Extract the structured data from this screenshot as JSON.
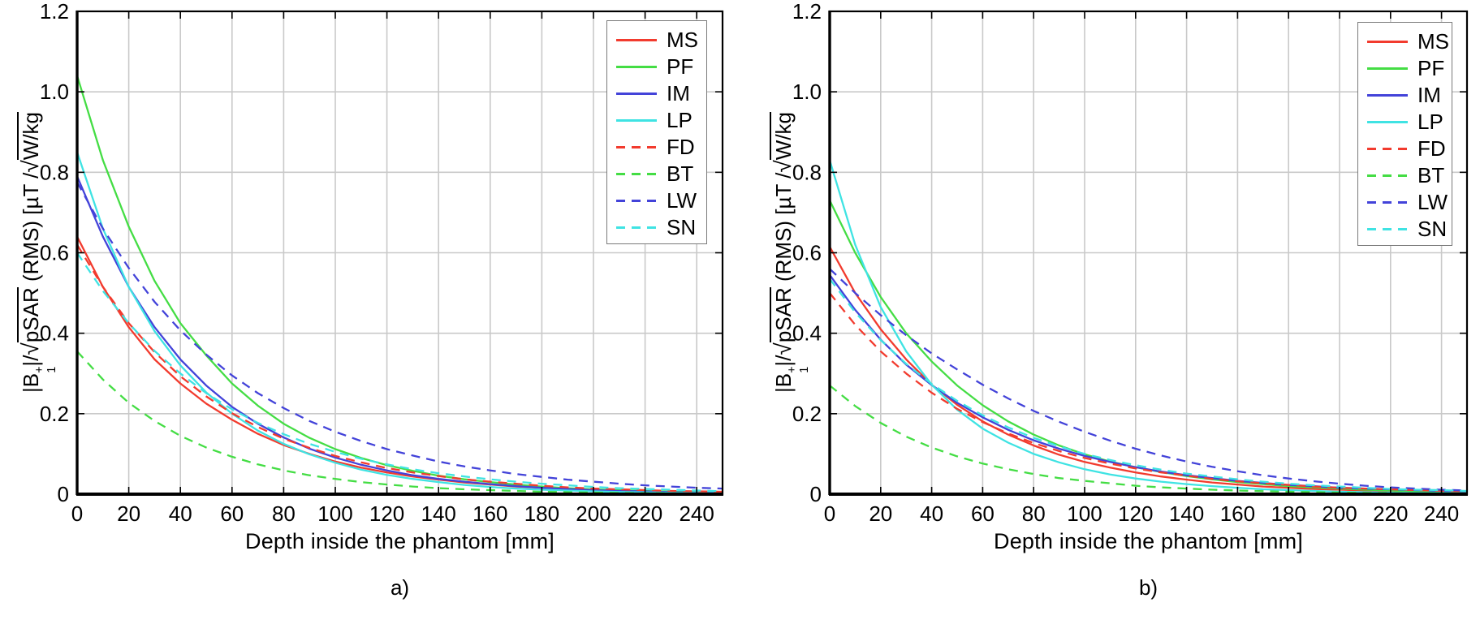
{
  "figure": {
    "captions": {
      "a": "a)",
      "b": "b)"
    },
    "xlabel": "Depth inside the phantom [mm]",
    "ylabel_parts": {
      "p1": "|B",
      "sup": "+",
      "sub": "1",
      "p2": "|/",
      "s1": "√",
      "r1": "pSAR",
      "p3": " (RMS)  [µT /",
      "s2": "√",
      "r2": "W/kg"
    },
    "colors": {
      "red": "#f23b2e",
      "green": "#44dd44",
      "blue": "#4343d9",
      "cyan": "#3fe3e3",
      "grid": "#c9c9c9",
      "axis": "#000000",
      "legend_border": "#7a7a7a"
    }
  },
  "chart_data": [
    {
      "type": "line",
      "panel": "a",
      "title": "",
      "xlabel": "Depth inside the phantom [mm]",
      "ylabel": "|B1+|/sqrt(pSAR) (RMS) [uT/sqrt(W/kg)]",
      "xlim": [
        0,
        250
      ],
      "ylim": [
        0,
        1.2
      ],
      "grid": true,
      "legend_position": "top-right",
      "xticks": [
        0,
        20,
        40,
        60,
        80,
        100,
        120,
        140,
        160,
        180,
        200,
        220,
        240
      ],
      "xtick_labels": [
        "0",
        "20",
        "40",
        "60",
        "80",
        "100",
        "120",
        "140",
        "160",
        "180",
        "200",
        "220",
        "240"
      ],
      "yticks": [
        0,
        0.2,
        0.4,
        0.6,
        0.8,
        1.0,
        1.2
      ],
      "ytick_labels": [
        "0",
        "0.2",
        "0.4",
        "0.6",
        "0.8",
        "1.0",
        "1.2"
      ],
      "x": [
        0,
        10,
        20,
        30,
        40,
        50,
        60,
        70,
        80,
        90,
        100,
        110,
        120,
        130,
        140,
        150,
        160,
        170,
        180,
        190,
        200,
        210,
        220,
        230,
        240,
        250
      ],
      "series": [
        {
          "name": "MS",
          "color": "#f23b2e",
          "dash": false,
          "values": [
            0.64,
            0.515,
            0.415,
            0.335,
            0.275,
            0.225,
            0.185,
            0.15,
            0.122,
            0.1,
            0.081,
            0.066,
            0.054,
            0.044,
            0.036,
            0.029,
            0.024,
            0.019,
            0.016,
            0.013,
            0.01,
            0.008,
            0.007,
            0.006,
            0.005,
            0.004
          ]
        },
        {
          "name": "PF",
          "color": "#44dd44",
          "dash": false,
          "values": [
            1.04,
            0.83,
            0.665,
            0.53,
            0.425,
            0.345,
            0.275,
            0.22,
            0.175,
            0.14,
            0.112,
            0.09,
            0.072,
            0.058,
            0.046,
            0.037,
            0.03,
            0.024,
            0.019,
            0.015,
            0.012,
            0.01,
            0.008,
            0.006,
            0.005,
            0.004
          ]
        },
        {
          "name": "IM",
          "color": "#4343d9",
          "dash": false,
          "values": [
            0.79,
            0.64,
            0.515,
            0.415,
            0.335,
            0.27,
            0.217,
            0.175,
            0.141,
            0.113,
            0.091,
            0.073,
            0.059,
            0.047,
            0.038,
            0.031,
            0.025,
            0.02,
            0.016,
            0.013,
            0.01,
            0.008,
            0.007,
            0.005,
            0.004,
            0.0035
          ]
        },
        {
          "name": "LP",
          "color": "#3fe3e3",
          "dash": false,
          "values": [
            0.85,
            0.66,
            0.515,
            0.405,
            0.32,
            0.253,
            0.2,
            0.158,
            0.125,
            0.099,
            0.078,
            0.061,
            0.048,
            0.038,
            0.03,
            0.023,
            0.018,
            0.014,
            0.011,
            0.009,
            0.007,
            0.0055,
            0.0045,
            0.0035,
            0.003,
            0.0025
          ]
        },
        {
          "name": "FD",
          "color": "#f23b2e",
          "dash": true,
          "values": [
            0.62,
            0.515,
            0.425,
            0.353,
            0.293,
            0.243,
            0.201,
            0.167,
            0.138,
            0.115,
            0.095,
            0.079,
            0.065,
            0.054,
            0.045,
            0.037,
            0.031,
            0.026,
            0.021,
            0.017,
            0.014,
            0.012,
            0.01,
            0.008,
            0.007,
            0.006
          ]
        },
        {
          "name": "BT",
          "color": "#44dd44",
          "dash": true,
          "values": [
            0.355,
            0.285,
            0.227,
            0.182,
            0.145,
            0.116,
            0.093,
            0.074,
            0.059,
            0.047,
            0.038,
            0.03,
            0.024,
            0.019,
            0.015,
            0.012,
            0.01,
            0.008,
            0.006,
            0.005,
            0.004,
            0.003,
            0.0026,
            0.0021,
            0.0017,
            0.0014
          ]
        },
        {
          "name": "LW",
          "color": "#4343d9",
          "dash": true,
          "values": [
            0.775,
            0.66,
            0.562,
            0.478,
            0.407,
            0.347,
            0.295,
            0.251,
            0.214,
            0.182,
            0.155,
            0.132,
            0.112,
            0.096,
            0.081,
            0.069,
            0.059,
            0.05,
            0.043,
            0.036,
            0.031,
            0.026,
            0.022,
            0.019,
            0.016,
            0.014
          ]
        },
        {
          "name": "SN",
          "color": "#3fe3e3",
          "dash": true,
          "values": [
            0.6,
            0.505,
            0.425,
            0.356,
            0.3,
            0.251,
            0.211,
            0.177,
            0.149,
            0.125,
            0.105,
            0.088,
            0.074,
            0.062,
            0.052,
            0.044,
            0.037,
            0.031,
            0.026,
            0.022,
            0.018,
            0.015,
            0.013,
            0.011,
            0.009,
            0.0075
          ]
        }
      ]
    },
    {
      "type": "line",
      "panel": "b",
      "title": "",
      "xlabel": "Depth inside the phantom [mm]",
      "ylabel": "|B1+|/sqrt(pSAR) (RMS) [uT/sqrt(W/kg)]",
      "xlim": [
        0,
        250
      ],
      "ylim": [
        0,
        1.2
      ],
      "grid": true,
      "legend_position": "top-right",
      "xticks": [
        0,
        20,
        40,
        60,
        80,
        100,
        120,
        140,
        160,
        180,
        200,
        220,
        240
      ],
      "xtick_labels": [
        "0",
        "20",
        "40",
        "60",
        "80",
        "100",
        "120",
        "140",
        "160",
        "180",
        "200",
        "220",
        "240"
      ],
      "yticks": [
        0,
        0.2,
        0.4,
        0.6,
        0.8,
        1.0,
        1.2
      ],
      "ytick_labels": [
        "0",
        "0.2",
        "0.4",
        "0.6",
        "0.8",
        "1.0",
        "1.2"
      ],
      "x": [
        0,
        10,
        20,
        30,
        40,
        50,
        60,
        70,
        80,
        90,
        100,
        110,
        120,
        130,
        140,
        150,
        160,
        170,
        180,
        190,
        200,
        210,
        220,
        230,
        240,
        250
      ],
      "series": [
        {
          "name": "MS",
          "color": "#f23b2e",
          "dash": false,
          "values": [
            0.615,
            0.5,
            0.41,
            0.335,
            0.272,
            0.222,
            0.181,
            0.148,
            0.121,
            0.098,
            0.08,
            0.066,
            0.054,
            0.044,
            0.036,
            0.029,
            0.024,
            0.019,
            0.016,
            0.013,
            0.011,
            0.009,
            0.007,
            0.006,
            0.005,
            0.004
          ]
        },
        {
          "name": "PF",
          "color": "#44dd44",
          "dash": false,
          "values": [
            0.73,
            0.6,
            0.49,
            0.4,
            0.33,
            0.27,
            0.221,
            0.181,
            0.148,
            0.121,
            0.099,
            0.081,
            0.067,
            0.055,
            0.045,
            0.037,
            0.03,
            0.025,
            0.02,
            0.017,
            0.014,
            0.011,
            0.009,
            0.007,
            0.006,
            0.005
          ]
        },
        {
          "name": "IM",
          "color": "#4343d9",
          "dash": false,
          "values": [
            0.545,
            0.458,
            0.384,
            0.322,
            0.271,
            0.227,
            0.191,
            0.16,
            0.134,
            0.113,
            0.095,
            0.08,
            0.067,
            0.056,
            0.047,
            0.04,
            0.033,
            0.028,
            0.023,
            0.02,
            0.016,
            0.014,
            0.012,
            0.01,
            0.008,
            0.007
          ]
        },
        {
          "name": "LP",
          "color": "#3fe3e3",
          "dash": false,
          "values": [
            0.83,
            0.62,
            0.465,
            0.355,
            0.272,
            0.21,
            0.163,
            0.128,
            0.1,
            0.079,
            0.062,
            0.049,
            0.039,
            0.031,
            0.025,
            0.02,
            0.016,
            0.012,
            0.01,
            0.008,
            0.006,
            0.005,
            0.004,
            0.003,
            0.0026,
            0.0021
          ]
        },
        {
          "name": "FD",
          "color": "#f23b2e",
          "dash": true,
          "values": [
            0.5,
            0.421,
            0.355,
            0.3,
            0.252,
            0.212,
            0.179,
            0.151,
            0.127,
            0.107,
            0.09,
            0.076,
            0.064,
            0.054,
            0.046,
            0.038,
            0.032,
            0.027,
            0.023,
            0.019,
            0.016,
            0.014,
            0.012,
            0.01,
            0.008,
            0.007
          ]
        },
        {
          "name": "BT",
          "color": "#44dd44",
          "dash": true,
          "values": [
            0.27,
            0.219,
            0.177,
            0.143,
            0.116,
            0.094,
            0.076,
            0.062,
            0.05,
            0.04,
            0.033,
            0.027,
            0.021,
            0.017,
            0.014,
            0.011,
            0.009,
            0.0075,
            0.006,
            0.005,
            0.004,
            0.0032,
            0.0026,
            0.0021,
            0.0017,
            0.0014
          ]
        },
        {
          "name": "LW",
          "color": "#4343d9",
          "dash": true,
          "values": [
            0.56,
            0.5,
            0.445,
            0.395,
            0.35,
            0.31,
            0.272,
            0.238,
            0.207,
            0.18,
            0.155,
            0.133,
            0.113,
            0.096,
            0.081,
            0.068,
            0.057,
            0.047,
            0.039,
            0.032,
            0.026,
            0.021,
            0.017,
            0.014,
            0.011,
            0.009
          ]
        },
        {
          "name": "SN",
          "color": "#3fe3e3",
          "dash": true,
          "values": [
            0.535,
            0.452,
            0.383,
            0.324,
            0.274,
            0.232,
            0.196,
            0.166,
            0.14,
            0.119,
            0.1,
            0.085,
            0.072,
            0.061,
            0.051,
            0.044,
            0.037,
            0.031,
            0.026,
            0.022,
            0.019,
            0.016,
            0.013,
            0.011,
            0.01,
            0.008
          ]
        }
      ]
    }
  ]
}
